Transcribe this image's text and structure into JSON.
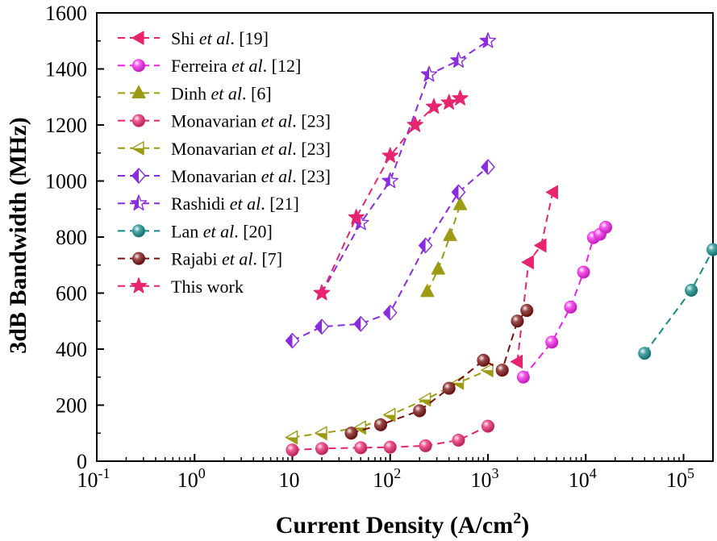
{
  "chart_data": {
    "type": "scatter",
    "xlabel": "Current Density (A/cm²)",
    "ylabel": "3dB Bandwidth (MHz)",
    "xscale": "log",
    "xlim": [
      0.1,
      200000
    ],
    "ylim": [
      0,
      1600
    ],
    "x_ticks": [
      {
        "base": "10",
        "exp": "-1",
        "value": 0.1
      },
      {
        "base": "10",
        "exp": "0",
        "value": 1
      },
      {
        "base": "10",
        "exp": "",
        "value": 10
      },
      {
        "base": "10",
        "exp": "2",
        "value": 100
      },
      {
        "base": "10",
        "exp": "3",
        "value": 1000
      },
      {
        "base": "10",
        "exp": "4",
        "value": 10000
      },
      {
        "base": "10",
        "exp": "5",
        "value": 100000
      }
    ],
    "y_ticks": [
      "0",
      "200",
      "400",
      "600",
      "800",
      "1000",
      "1200",
      "1400",
      "1600"
    ],
    "legend_position": "top-left",
    "grid": false,
    "series": [
      {
        "label_pre": "Shi ",
        "label_it": "et al",
        "label_post": ". [19]",
        "color": "#e8246e",
        "marker": "tri-left",
        "fill": "solid",
        "x": [
          2000,
          2600,
          3500,
          4600
        ],
        "y": [
          355,
          710,
          770,
          960
        ]
      },
      {
        "label_pre": "Ferreira ",
        "label_it": "et al",
        "label_post": ". [12]",
        "color": "#f020e6",
        "marker": "sphere",
        "fill": "solid",
        "x": [
          2300,
          4500,
          7000,
          9500,
          12000,
          14000,
          16000
        ],
        "y": [
          300,
          425,
          550,
          675,
          798,
          810,
          835
        ]
      },
      {
        "label_pre": "Dinh ",
        "label_it": "et al",
        "label_post": ". [6]",
        "color": "#9d9a14",
        "marker": "tri-up",
        "fill": "solid",
        "x": [
          240,
          310,
          410,
          520
        ],
        "y": [
          605,
          685,
          805,
          915
        ]
      },
      {
        "label_pre": "Monavarian ",
        "label_it": "et al",
        "label_post": ". [23]",
        "color": "#e8246e",
        "marker": "sphere",
        "fill": "solid",
        "x": [
          10,
          20,
          50,
          100,
          230,
          500,
          1000
        ],
        "y": [
          40,
          45,
          48,
          50,
          55,
          75,
          125
        ]
      },
      {
        "label_pre": "Monavarian ",
        "label_it": "et al",
        "label_post": ". [23]",
        "color": "#9d9a14",
        "marker": "tri-left",
        "fill": "half",
        "x": [
          10,
          20,
          50,
          100,
          230,
          500,
          1000
        ],
        "y": [
          85,
          100,
          120,
          165,
          220,
          280,
          325
        ]
      },
      {
        "label_pre": "Monavarian ",
        "label_it": "et al",
        "label_post": ". [23]",
        "color": "#8a2be2",
        "marker": "diamond",
        "fill": "half",
        "x": [
          10,
          20,
          50,
          100,
          230,
          500,
          1000
        ],
        "y": [
          430,
          480,
          490,
          530,
          770,
          960,
          1050
        ]
      },
      {
        "label_pre": "Rashidi ",
        "label_it": "et al",
        "label_post": ". [21]",
        "color": "#8a2be2",
        "marker": "star",
        "fill": "half",
        "x": [
          20,
          50,
          100,
          250,
          500,
          1000
        ],
        "y": [
          600,
          850,
          1000,
          1380,
          1430,
          1500
        ]
      },
      {
        "label_pre": "Lan ",
        "label_it": "et al",
        "label_post": ". [20]",
        "color": "#138a8a",
        "marker": "sphere",
        "fill": "solid",
        "x": [
          40000,
          120000,
          200000
        ],
        "y": [
          385,
          610,
          755
        ]
      },
      {
        "label_pre": "Rajabi ",
        "label_it": "et al",
        "label_post": ". [7]",
        "color": "#7a0f0f",
        "marker": "sphere",
        "fill": "solid",
        "x": [
          40,
          80,
          200,
          400,
          900,
          1400,
          2000,
          2500
        ],
        "y": [
          100,
          130,
          180,
          260,
          360,
          325,
          500,
          538
        ]
      },
      {
        "label_pre": "This work",
        "label_it": "",
        "label_post": "",
        "color": "#e8246e",
        "marker": "star",
        "fill": "solid",
        "x": [
          20,
          45,
          100,
          180,
          280,
          400,
          520
        ],
        "y": [
          600,
          870,
          1090,
          1200,
          1265,
          1280,
          1295
        ]
      }
    ]
  }
}
